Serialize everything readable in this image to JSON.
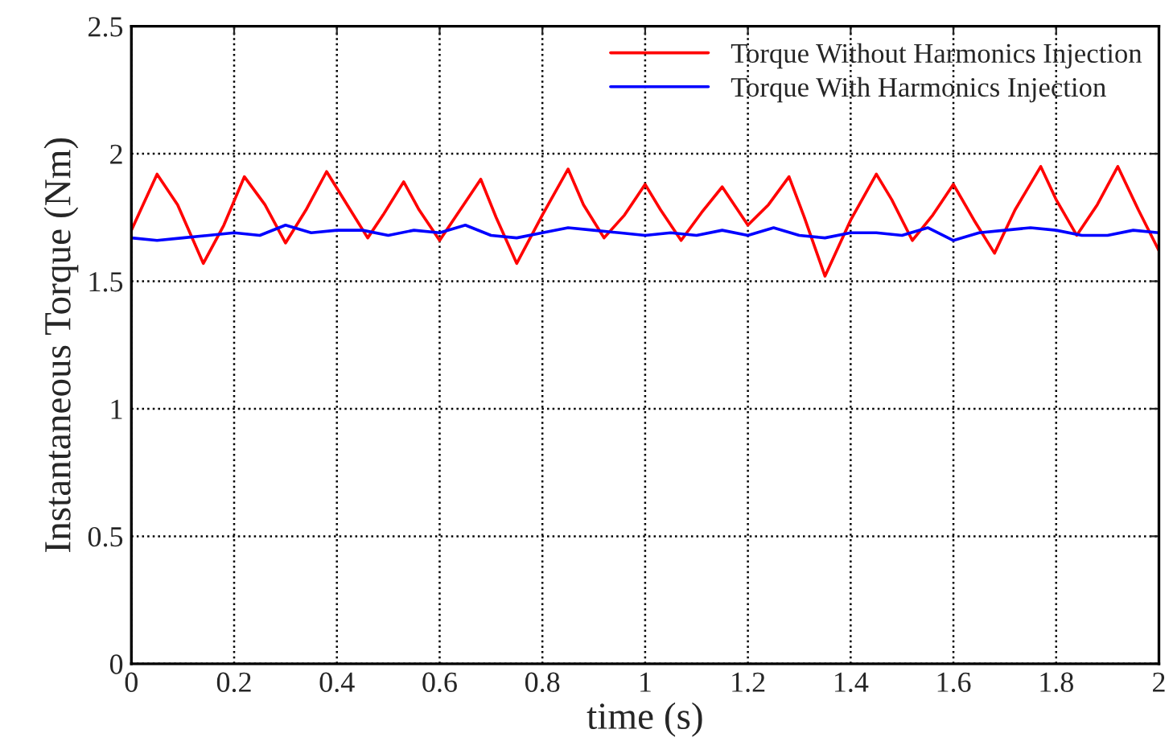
{
  "chart_data": {
    "type": "line",
    "xlabel": "time (s)",
    "ylabel": "Instantaneous Torque (Nm)",
    "xlim": [
      0,
      2
    ],
    "ylim": [
      0,
      2.5
    ],
    "xticks": [
      0,
      0.2,
      0.4,
      0.6,
      0.8,
      1,
      1.2,
      1.4,
      1.6,
      1.8,
      2
    ],
    "yticks": [
      0,
      0.5,
      1,
      1.5,
      2,
      2.5
    ],
    "grid": true,
    "legend": "top right",
    "line_style": "solid",
    "series": [
      {
        "name": "Torque Without Harmonics Injection",
        "color": "#ff0000",
        "x": [
          0,
          0.05,
          0.09,
          0.14,
          0.18,
          0.22,
          0.26,
          0.3,
          0.34,
          0.38,
          0.42,
          0.46,
          0.49,
          0.53,
          0.56,
          0.6,
          0.64,
          0.68,
          0.71,
          0.75,
          0.8,
          0.85,
          0.88,
          0.92,
          0.96,
          1.0,
          1.03,
          1.07,
          1.11,
          1.15,
          1.18,
          1.2,
          1.24,
          1.28,
          1.31,
          1.35,
          1.4,
          1.45,
          1.48,
          1.52,
          1.56,
          1.6,
          1.64,
          1.68,
          1.72,
          1.77,
          1.8,
          1.84,
          1.88,
          1.92,
          1.96,
          2.0
        ],
        "values": [
          1.7,
          1.92,
          1.8,
          1.57,
          1.72,
          1.91,
          1.8,
          1.65,
          1.78,
          1.93,
          1.8,
          1.67,
          1.76,
          1.89,
          1.78,
          1.66,
          1.78,
          1.9,
          1.75,
          1.57,
          1.76,
          1.94,
          1.8,
          1.67,
          1.76,
          1.88,
          1.78,
          1.66,
          1.77,
          1.87,
          1.78,
          1.72,
          1.8,
          1.91,
          1.75,
          1.52,
          1.74,
          1.92,
          1.82,
          1.66,
          1.76,
          1.88,
          1.74,
          1.61,
          1.78,
          1.95,
          1.82,
          1.68,
          1.8,
          1.95,
          1.78,
          1.62
        ]
      },
      {
        "name": "Torque With Harmonics Injection",
        "color": "#0000ff",
        "x": [
          0,
          0.05,
          0.1,
          0.15,
          0.2,
          0.25,
          0.3,
          0.35,
          0.4,
          0.45,
          0.5,
          0.55,
          0.6,
          0.65,
          0.7,
          0.75,
          0.8,
          0.85,
          0.9,
          0.95,
          1.0,
          1.05,
          1.1,
          1.15,
          1.2,
          1.25,
          1.3,
          1.35,
          1.4,
          1.45,
          1.5,
          1.55,
          1.6,
          1.65,
          1.7,
          1.75,
          1.8,
          1.85,
          1.9,
          1.95,
          2.0
        ],
        "values": [
          1.67,
          1.66,
          1.67,
          1.68,
          1.69,
          1.68,
          1.72,
          1.69,
          1.7,
          1.7,
          1.68,
          1.7,
          1.69,
          1.72,
          1.68,
          1.67,
          1.69,
          1.71,
          1.7,
          1.69,
          1.68,
          1.69,
          1.68,
          1.7,
          1.68,
          1.71,
          1.68,
          1.67,
          1.69,
          1.69,
          1.68,
          1.71,
          1.66,
          1.69,
          1.7,
          1.71,
          1.7,
          1.68,
          1.68,
          1.7,
          1.69
        ]
      }
    ]
  }
}
